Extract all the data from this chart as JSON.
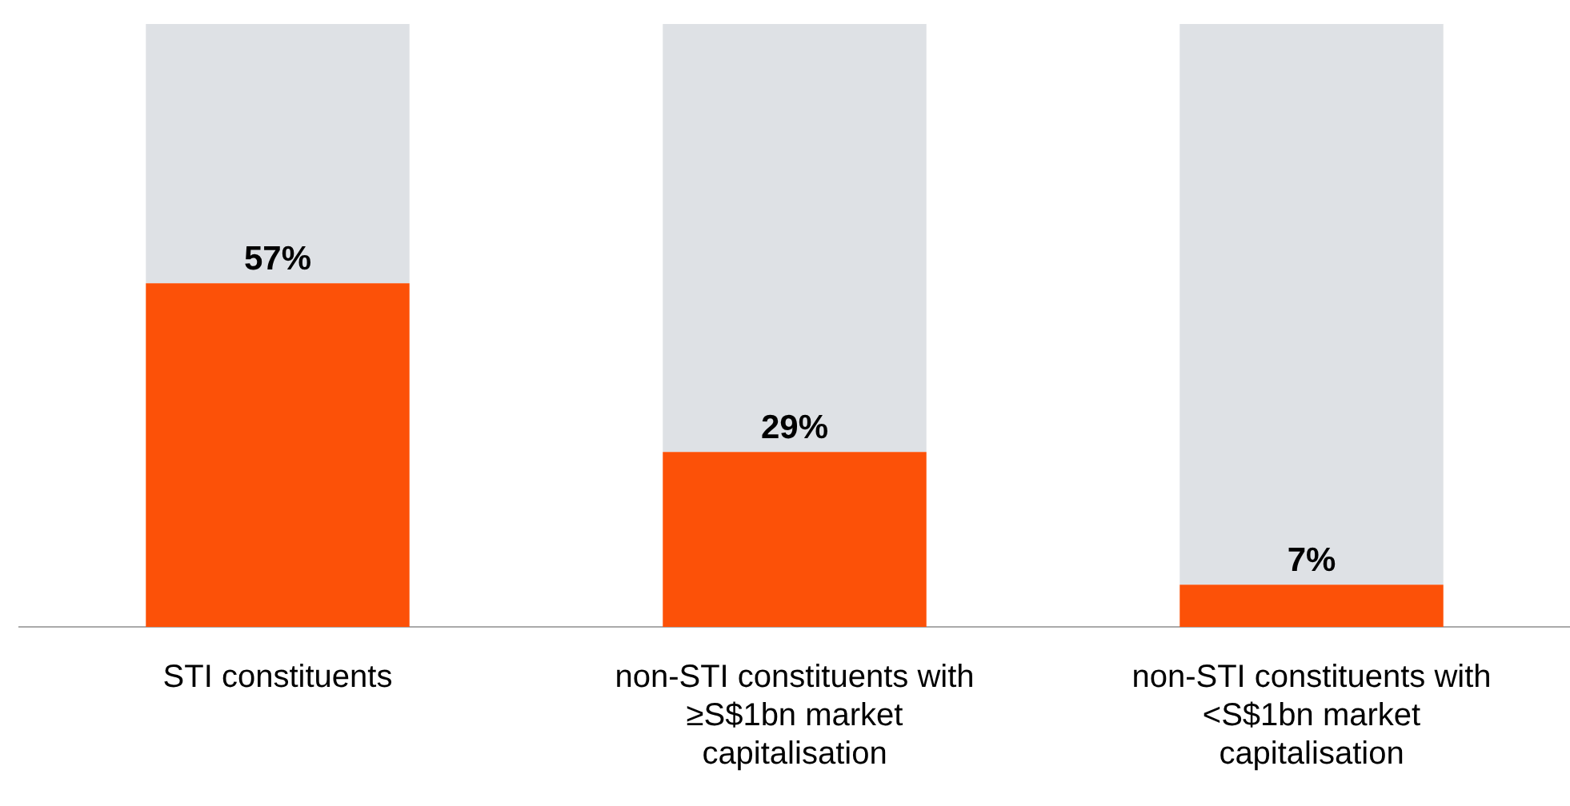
{
  "chart_data": {
    "type": "bar",
    "stacked": true,
    "categories": [
      "STI constituents",
      "non-STI constituents with ≥S$1bn market capitalisation",
      "non-STI constituents with <S$1bn market capitalisation"
    ],
    "series": [
      {
        "color": "#fc5108",
        "values": [
          57,
          29,
          7
        ],
        "value_labels": [
          "57%",
          "29%",
          "7%"
        ]
      },
      {
        "color": "#dee1e5",
        "values": [
          43,
          71,
          93
        ]
      }
    ],
    "ylim": [
      0,
      100
    ],
    "tick_labels": "x",
    "grid": false,
    "legend": false
  }
}
